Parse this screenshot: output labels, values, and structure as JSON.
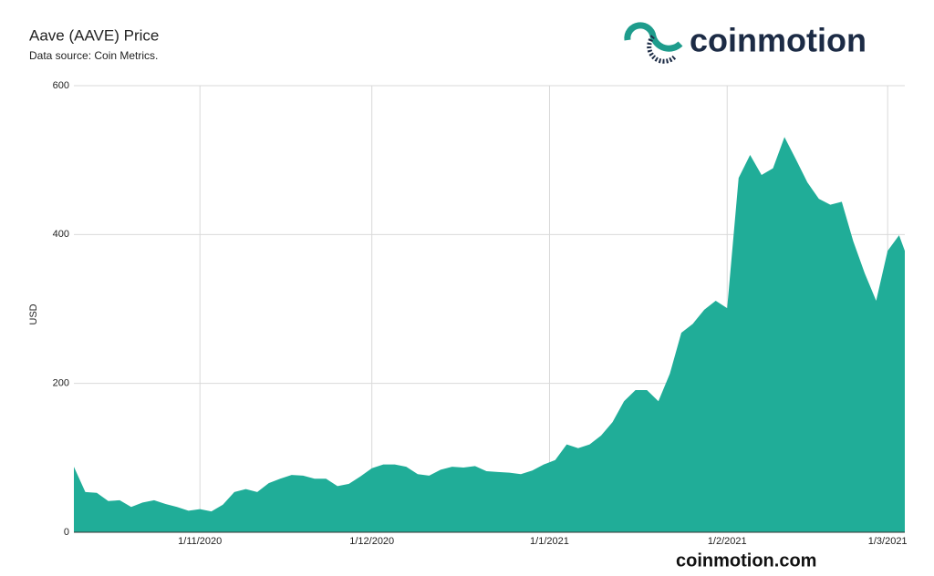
{
  "chart_data": {
    "type": "area",
    "title": "Aave (AAVE) Price",
    "subtitle": "Data source: Coin Metrics.",
    "y_label": "USD",
    "color": "#20ad98",
    "grid": true,
    "x": [
      "10/10/2020",
      "12/10/2020",
      "14/10/2020",
      "16/10/2020",
      "18/10/2020",
      "20/10/2020",
      "22/10/2020",
      "24/10/2020",
      "26/10/2020",
      "28/10/2020",
      "30/10/2020",
      "1/11/2020",
      "3/11/2020",
      "5/11/2020",
      "7/11/2020",
      "9/11/2020",
      "11/11/2020",
      "13/11/2020",
      "15/11/2020",
      "17/11/2020",
      "19/11/2020",
      "21/11/2020",
      "23/11/2020",
      "25/11/2020",
      "27/11/2020",
      "29/11/2020",
      "1/12/2020",
      "3/12/2020",
      "5/12/2020",
      "7/12/2020",
      "9/12/2020",
      "11/12/2020",
      "13/12/2020",
      "15/12/2020",
      "17/12/2020",
      "19/12/2020",
      "21/12/2020",
      "23/12/2020",
      "25/12/2020",
      "27/12/2020",
      "29/12/2020",
      "31/12/2020",
      "2/1/2021",
      "4/1/2021",
      "6/1/2021",
      "8/1/2021",
      "10/1/2021",
      "12/1/2021",
      "14/1/2021",
      "16/1/2021",
      "18/1/2021",
      "20/1/2021",
      "22/1/2021",
      "24/1/2021",
      "26/1/2021",
      "28/1/2021",
      "30/1/2021",
      "1/2/2021",
      "3/2/2021",
      "5/2/2021",
      "7/2/2021",
      "9/2/2021",
      "11/2/2021",
      "13/2/2021",
      "15/2/2021",
      "17/2/2021",
      "19/2/2021",
      "21/2/2021",
      "23/2/2021",
      "25/2/2021",
      "27/2/2021",
      "1/3/2021",
      "3/3/2021",
      "4/3/2021"
    ],
    "values": [
      88,
      54,
      53,
      42,
      43,
      34,
      40,
      43,
      38,
      34,
      29,
      31,
      28,
      37,
      54,
      58,
      54,
      66,
      72,
      77,
      76,
      72,
      72,
      62,
      65,
      75,
      86,
      91,
      91,
      88,
      78,
      76,
      84,
      88,
      87,
      89,
      82,
      81,
      80,
      78,
      83,
      91,
      97,
      118,
      113,
      118,
      130,
      148,
      176,
      191,
      191,
      176,
      213,
      268,
      280,
      299,
      311,
      301,
      476,
      507,
      480,
      489,
      531,
      501,
      470,
      448,
      440,
      444,
      391,
      348,
      311,
      378,
      399,
      378
    ],
    "xlim": [
      "10/10/2020",
      "4/3/2021"
    ],
    "xticks": [
      "1/11/2020",
      "1/12/2020",
      "1/1/2021",
      "1/2/2021",
      "1/3/2021"
    ],
    "ylim": [
      0,
      600
    ],
    "yticks": [
      0,
      200,
      400,
      600
    ]
  },
  "brand": {
    "logo": "coinmotion",
    "url": "coinmotion.com"
  }
}
